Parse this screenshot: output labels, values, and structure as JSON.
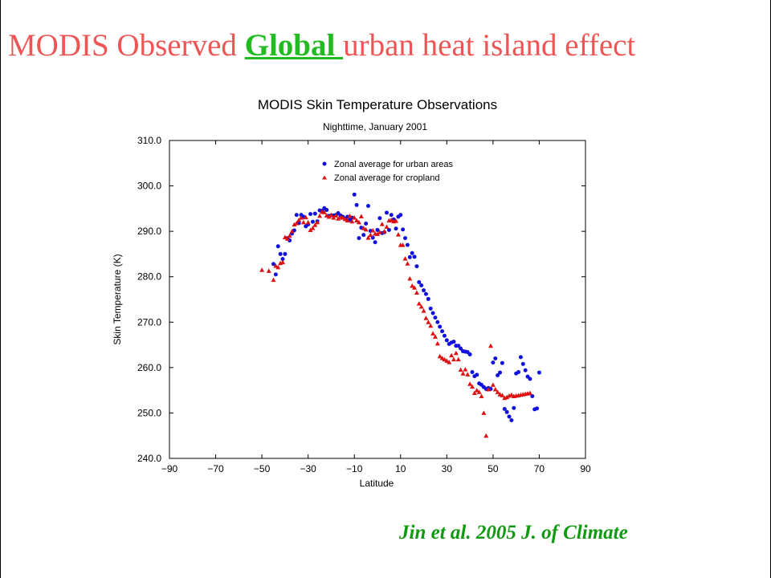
{
  "slide": {
    "title_pre": "MODIS Observed ",
    "title_highlight": "Global ",
    "title_post": "urban heat island effect",
    "citation": "Jin et al. 2005 J. of Climate"
  },
  "colors": {
    "title": "#ee5555",
    "highlight": "#22bb22",
    "citation": "#119911",
    "urban": "#1111dd",
    "cropland": "#dd1111"
  },
  "chart_data": {
    "type": "scatter",
    "title": "MODIS  Skin Temperature Observations",
    "subtitle": "Nighttime, January 2001",
    "xlabel": "Latitude",
    "ylabel": "Skin Temperature (K)",
    "xlim": [
      -90,
      90
    ],
    "ylim": [
      240,
      310
    ],
    "xticks": [
      -90,
      -70,
      -50,
      -30,
      -10,
      10,
      30,
      50,
      70,
      90
    ],
    "xtick_labels": [
      "−90",
      "−70",
      "−50",
      "−30",
      "−10",
      "10",
      "30",
      "50",
      "70",
      "90"
    ],
    "yticks": [
      240,
      250,
      260,
      270,
      280,
      290,
      300,
      310
    ],
    "ytick_labels": [
      "240.0",
      "250.0",
      "260.0",
      "270.0",
      "280.0",
      "290.0",
      "300.0",
      "310.0"
    ],
    "grid": false,
    "legend_position": "top-center",
    "series": [
      {
        "name": "Zonal average for urban areas",
        "marker": "circle",
        "color": "#1111dd",
        "x": [
          -45,
          -44,
          -43,
          -42,
          -41,
          -40,
          -39,
          -38,
          -37,
          -36,
          -35,
          -34,
          -33,
          -32,
          -31,
          -30,
          -29,
          -28,
          -27,
          -26,
          -25,
          -24,
          -23,
          -22,
          -21,
          -20,
          -19,
          -18,
          -17,
          -16,
          -15,
          -14,
          -13,
          -12,
          -11,
          -10,
          -9,
          -8,
          -7,
          -6,
          -5,
          -4,
          -3,
          -2,
          -1,
          0,
          1,
          2,
          3,
          4,
          5,
          6,
          7,
          8,
          9,
          10,
          11,
          12,
          13,
          14,
          15,
          16,
          17,
          18,
          19,
          20,
          21,
          22,
          23,
          24,
          25,
          26,
          27,
          28,
          29,
          30,
          31,
          32,
          33,
          34,
          35,
          36,
          37,
          38,
          39,
          40,
          41,
          42,
          43,
          44,
          45,
          46,
          47,
          48,
          49,
          50,
          51,
          52,
          53,
          54,
          55,
          56,
          57,
          58,
          59,
          60,
          61,
          62,
          63,
          64,
          65,
          66,
          67,
          68,
          69,
          70
        ],
        "y": [
          282.8,
          280.5,
          286.7,
          285.0,
          283.9,
          285.0,
          288.5,
          288.0,
          289.5,
          290.2,
          293.6,
          291.8,
          293.6,
          293.2,
          291.1,
          291.5,
          293.8,
          292.1,
          293.9,
          292.2,
          294.6,
          294.5,
          295.1,
          294.7,
          293.4,
          293.5,
          293.5,
          293.6,
          294.0,
          293.5,
          293.2,
          292.8,
          293.2,
          292.5,
          293.0,
          298.1,
          295.8,
          288.5,
          290.8,
          289.2,
          291.7,
          295.6,
          290.1,
          288.6,
          287.6,
          290.3,
          292.9,
          289.6,
          289.8,
          294.1,
          290.3,
          293.6,
          292.6,
          290.6,
          293.2,
          293.6,
          290.4,
          288.5,
          287.0,
          284.3,
          285.2,
          284.4,
          282.3,
          278.8,
          278.1,
          277.0,
          276.2,
          275.1,
          273.0,
          272.0,
          271.0,
          270.0,
          269.0,
          268.0,
          267.0,
          266.0,
          265.2,
          265.5,
          265.7,
          264.8,
          264.8,
          264.2,
          263.6,
          263.5,
          263.4,
          262.9,
          259.0,
          258.1,
          258.4,
          256.5,
          256.2,
          255.7,
          255.3,
          255.5,
          255.3,
          261.1,
          262.0,
          258.3,
          258.9,
          261.0,
          250.9,
          250.2,
          249.2,
          248.4,
          251.1,
          258.7,
          259.0,
          262.3,
          260.8,
          259.4,
          258.0,
          257.5,
          253.7,
          250.8,
          251.0,
          258.9
        ]
      },
      {
        "name": "Zonal average for cropland",
        "marker": "triangle",
        "color": "#dd1111",
        "x": [
          -50,
          -47,
          -45,
          -44,
          -43,
          -42,
          -41,
          -40,
          -39,
          -38,
          -37,
          -36,
          -35,
          -34,
          -33,
          -32,
          -31,
          -30,
          -29,
          -28,
          -27,
          -26,
          -25,
          -24,
          -23,
          -22,
          -21,
          -20,
          -19,
          -18,
          -17,
          -16,
          -15,
          -14,
          -13,
          -12,
          -11,
          -10,
          -9,
          -8,
          -7,
          -6,
          -5,
          -4,
          -3,
          -2,
          -1,
          0,
          1,
          2,
          3,
          4,
          5,
          6,
          7,
          8,
          9,
          10,
          11,
          12,
          13,
          14,
          15,
          16,
          17,
          18,
          19,
          20,
          21,
          22,
          23,
          24,
          25,
          26,
          27,
          28,
          29,
          30,
          31,
          32,
          33,
          34,
          35,
          36,
          37,
          38,
          39,
          40,
          41,
          42,
          43,
          44,
          45,
          46,
          47,
          48,
          49,
          50,
          51,
          52,
          53,
          54,
          55,
          56,
          57,
          58,
          59,
          60,
          61,
          62,
          63,
          64,
          65,
          66
        ],
        "y": [
          281.5,
          281.3,
          279.3,
          282.4,
          282.1,
          283.0,
          283.2,
          288.7,
          288.4,
          289.0,
          290.0,
          291.5,
          291.8,
          292.5,
          293.0,
          292.0,
          293.1,
          292.0,
          290.3,
          290.7,
          291.4,
          292.0,
          293.4,
          294.3,
          294.2,
          293.5,
          293.2,
          293.6,
          293.0,
          293.5,
          292.8,
          293.1,
          293.0,
          292.7,
          292.4,
          293.4,
          292.2,
          293.0,
          292.4,
          292.0,
          293.3,
          290.7,
          290.4,
          288.6,
          289.2,
          290.2,
          289.5,
          289.4,
          289.8,
          291.6,
          290.0,
          291.0,
          292.4,
          292.5,
          292.2,
          292.3,
          289.3,
          287.0,
          287.0,
          284.0,
          282.9,
          279.6,
          278.0,
          277.6,
          276.5,
          274.1,
          273.4,
          272.5,
          270.9,
          270.0,
          269.2,
          267.5,
          266.8,
          265.3,
          262.5,
          262.1,
          261.8,
          261.5,
          261.2,
          262.7,
          261.8,
          263.2,
          261.8,
          259.5,
          258.7,
          259.6,
          258.5,
          256.4,
          255.8,
          254.4,
          255.0,
          254.6,
          253.7,
          250.0,
          245.0,
          255.2,
          264.8,
          256.2,
          255.2,
          254.6,
          254.1,
          253.9,
          253.3,
          253.5,
          253.8,
          254.0,
          253.7,
          253.8,
          253.9,
          254.0,
          254.1,
          254.2,
          254.3,
          254.4
        ]
      }
    ]
  }
}
